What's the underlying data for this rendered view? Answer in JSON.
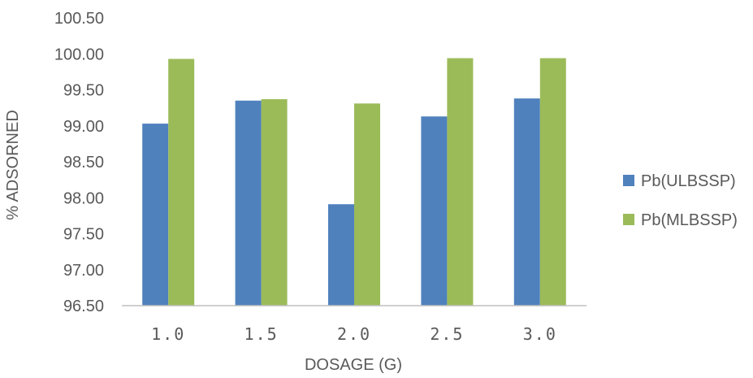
{
  "chart_data": {
    "type": "bar",
    "title": "",
    "xlabel": "DOSAGE (G)",
    "ylabel": "% ADSORNED",
    "categories": [
      "1.0",
      "1.5",
      "2.0",
      "2.5",
      "3.0"
    ],
    "series": [
      {
        "name": "Pb(ULBSSP)",
        "color": "#4F81BD",
        "values": [
          99.03,
          99.35,
          97.91,
          99.13,
          99.38
        ]
      },
      {
        "name": "Pb(MLBSSP)",
        "color": "#9BBB59",
        "values": [
          99.93,
          99.37,
          99.31,
          99.94,
          99.94
        ]
      }
    ],
    "ylim": [
      96.5,
      100.5
    ],
    "yticks": [
      "96.50",
      "97.00",
      "97.50",
      "98.00",
      "98.50",
      "99.00",
      "99.50",
      "100.00",
      "100.50"
    ],
    "grid": false,
    "legend_position": "right"
  }
}
